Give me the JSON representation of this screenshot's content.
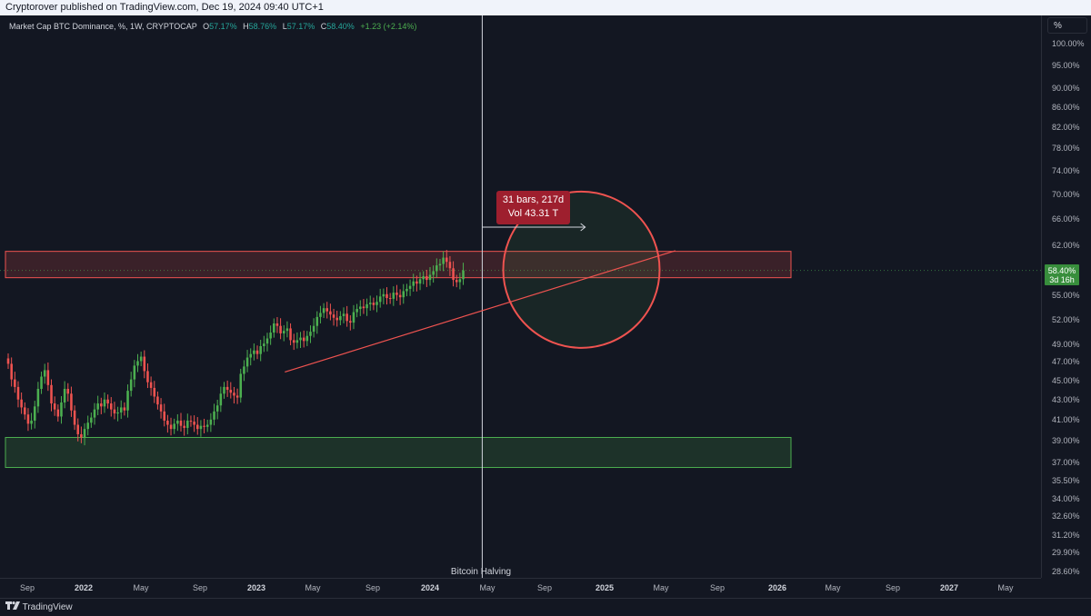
{
  "header": {
    "published_text": "Cryptorover published on TradingView.com, Dec 19, 2024 09:40 UTC+1"
  },
  "legend": {
    "symbol_text": "Market Cap BTC Dominance, %, 1W, CRYPTOCAP",
    "o_label": "O",
    "o_value": "57.17%",
    "h_label": "H",
    "h_value": "58.76%",
    "l_label": "L",
    "l_value": "57.17%",
    "c_label": "C",
    "c_value": "58.40%",
    "change": "+1.23 (+2.14%)"
  },
  "yaxis": {
    "unit_button": "%",
    "ticks": [
      "100.00%",
      "95.00%",
      "90.00%",
      "86.00%",
      "82.00%",
      "78.00%",
      "74.00%",
      "70.00%",
      "66.00%",
      "62.00%",
      "55.00%",
      "52.00%",
      "49.00%",
      "47.00%",
      "45.00%",
      "43.00%",
      "41.00%",
      "39.00%",
      "37.00%",
      "35.50%",
      "34.00%",
      "32.60%",
      "31.20%",
      "29.90%",
      "28.60%"
    ],
    "price_badge": {
      "value": "58.40%",
      "countdown": "3d 16h"
    }
  },
  "xaxis": {
    "ticks": [
      {
        "label": "Sep",
        "year": false
      },
      {
        "label": "2022",
        "year": true
      },
      {
        "label": "May",
        "year": false
      },
      {
        "label": "Sep",
        "year": false
      },
      {
        "label": "2023",
        "year": true
      },
      {
        "label": "May",
        "year": false
      },
      {
        "label": "Sep",
        "year": false
      },
      {
        "label": "2024",
        "year": true
      },
      {
        "label": "May",
        "year": false
      },
      {
        "label": "Sep",
        "year": false
      },
      {
        "label": "2025",
        "year": true
      },
      {
        "label": "May",
        "year": false
      },
      {
        "label": "Sep",
        "year": false
      },
      {
        "label": "2026",
        "year": true
      },
      {
        "label": "May",
        "year": false
      },
      {
        "label": "Sep",
        "year": false
      },
      {
        "label": "2027",
        "year": true
      },
      {
        "label": "May",
        "year": false
      }
    ]
  },
  "annotations": {
    "halving_label": "Bitcoin Halving",
    "measure_line1": "31 bars, 217d",
    "measure_line2": "Vol 43.31 T"
  },
  "footer": {
    "brand": "TradingView"
  },
  "colors": {
    "background": "#131722",
    "up": "#26a69a",
    "up_candle": "#4caf50",
    "down": "#ef5350",
    "resistance_zone": "#ef5350",
    "support_zone": "#4caf50",
    "trendline": "#ef5350",
    "highlight_circle": "#ef5350"
  },
  "chart_data": {
    "type": "candlestick",
    "title": "Market Cap BTC Dominance, %, 1W, CRYPTOCAP",
    "ylabel": "%",
    "y_scale": "log",
    "ylim": [
      28.6,
      102
    ],
    "x_range": [
      "2021-08",
      "2027-07"
    ],
    "close_series": {
      "interval": "1W",
      "start": "2021-07-26",
      "values": [
        46.8,
        45.1,
        44.3,
        43.0,
        42.2,
        41.5,
        40.6,
        40.9,
        42.3,
        44.1,
        45.4,
        46.1,
        44.5,
        42.6,
        42.0,
        41.3,
        42.7,
        44.1,
        43.6,
        41.9,
        40.5,
        39.6,
        39.3,
        40.1,
        40.7,
        41.2,
        42.0,
        42.6,
        42.3,
        43.0,
        42.6,
        42.0,
        41.6,
        41.7,
        42.2,
        41.9,
        43.9,
        45.1,
        46.6,
        47.1,
        47.6,
        46.0,
        44.8,
        44.2,
        43.3,
        42.5,
        41.8,
        40.9,
        40.5,
        40.1,
        40.6,
        40.9,
        40.4,
        40.2,
        40.9,
        40.8,
        40.5,
        40.1,
        40.4,
        40.3,
        40.5,
        41.0,
        41.8,
        42.4,
        43.6,
        44.3,
        44.0,
        43.7,
        43.4,
        43.2,
        45.7,
        46.5,
        47.5,
        47.9,
        48.3,
        47.9,
        48.8,
        49.1,
        49.7,
        50.4,
        51.5,
        51.2,
        50.3,
        50.6,
        50.9,
        49.5,
        49.2,
        49.5,
        49.8,
        49.4,
        50.0,
        50.5,
        51.2,
        52.3,
        52.8,
        53.4,
        53.0,
        52.6,
        52.2,
        51.9,
        52.4,
        52.7,
        51.8,
        51.6,
        52.9,
        53.3,
        53.6,
        53.4,
        53.9,
        54.1,
        53.8,
        54.2,
        54.9,
        55.2,
        54.7,
        54.6,
        55.4,
        55.1,
        54.8,
        55.6,
        55.9,
        56.3,
        56.9,
        56.6,
        57.2,
        57.6,
        57.1,
        57.8,
        58.3,
        59.1,
        59.3,
        60.2,
        59.6,
        58.7,
        57.1,
        56.8,
        57.2,
        58.4
      ],
      "last_value": 58.4
    },
    "horizontal_zones": [
      {
        "name": "resistance",
        "from": 57.4,
        "to": 61.1
      },
      {
        "name": "support",
        "from": 36.6,
        "to": 39.3
      }
    ],
    "trendline": {
      "from": {
        "date": "2023-03",
        "value": 45.9
      },
      "to": {
        "date": "2025-06",
        "value": 61.2
      }
    },
    "vertical_lines": [
      {
        "date": "2024-04-20",
        "label": "Bitcoin Halving"
      }
    ],
    "measure": {
      "from_date": "2024-04-20",
      "bars": 31,
      "days": 217,
      "volume": "43.31 T"
    },
    "highlight_circle": {
      "center_date": "2024-11-15",
      "center_value": 58.0
    }
  }
}
